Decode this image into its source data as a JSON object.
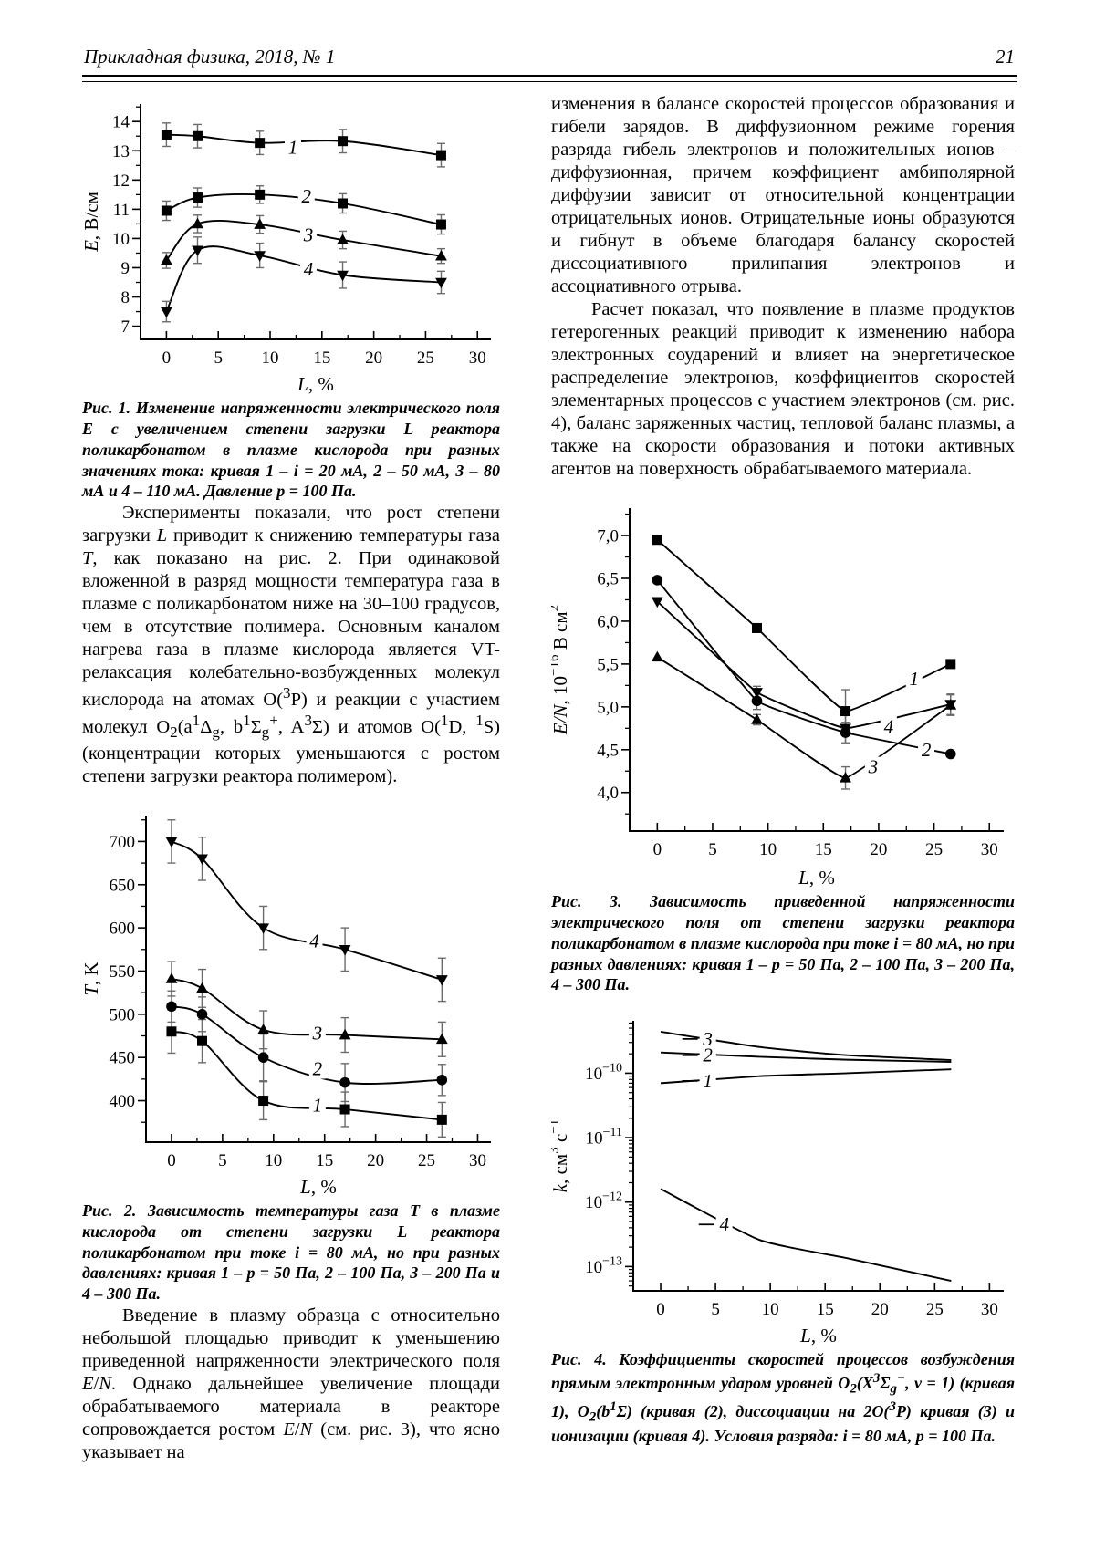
{
  "header": {
    "journal_title": "Прикладная физика, 2018, № 1",
    "page_number": "21"
  },
  "left_column": {
    "figure1_caption_html": "Рис. 1. Изменение напряженности электрического поля <i>E</i> с увеличением степени загрузки <i>L</i> реактора поликарбонатом в плазме кислорода при разных значениях тока: кривая 1 – <i>i</i> = 20 мА, 2 – 50 мА, 3 – 80 мА и 4 – 110 мА. Давление <i>p</i> = 100 Па.",
    "paragraph1_html": "Эксперименты показали, что рост степени загрузки <i>L</i> приводит к снижению температуры газа <i>T</i>, как показано на рис. 2. При одинаковой вложенной в разряд мощности температура газа в плазме с поликарбонатом ниже на 30–100 градусов, чем в отсутствие полимера. Основным каналом нагрева газа в плазме кислорода является VT-релаксация колебательно-возбужденных молекул кислорода на атомах O(<sup>3</sup>P) и реакции с участием молекул O<sub>2</sub>(a<sup>1</sup>Δ<sub>g</sub>, b<sup>1</sup>Σ<sub>g</sub><sup>+</sup>, A<sup>3</sup>Σ) и атомов O(<sup>1</sup>D, <sup>1</sup>S) (концентрации которых уменьшаются с ростом степени загрузки реактора полимером).",
    "figure2_caption_html": "Рис. 2. Зависимость температуры газа <i>T</i> в плазме кислорода от степени загрузки <i>L</i> реактора поликарбонатом при токе <i>i</i> = 80 мА, но при разных давлениях: кривая 1 – <i>p</i> = 50 Па, 2 – 100 Па, 3 – 200 Па и 4 – 300 Па.",
    "paragraph2_html": "Введение в плазму образца с относительно небольшой площадью приводит к уменьшению приведенной напряженности электрического поля <i>E</i>/<i>N</i>. Однако дальнейшее увеличение площади обрабатываемого материала в реакторе сопровождается ростом <i>E</i>/<i>N</i> (см. рис. 3), что ясно указывает на"
  },
  "right_column": {
    "paragraph1_html": "изменения в балансе скоростей процессов образования и гибели зарядов. В диффузионном режиме горения разряда гибель электронов и положительных ионов – диффузионная, причем коэффициент амбиполярной диффузии зависит от относительной концентрации отрицательных ионов. Отрицательные ионы образуются и гибнут в объеме благодаря балансу скоростей диссоциативного прилипания электронов и ассоциативного отрыва.",
    "paragraph2_html": "Расчет показал, что появление в плазме продуктов гетерогенных реакций приводит к изменению набора электронных соударений и влияет на энергетическое распределение электронов, коэффициентов скоростей элементарных процессов с участием электронов (см. рис. 4), баланс заряженных частиц, тепловой баланс плазмы, а также на скорости образования и потоки активных агентов на поверхность обрабатываемого материала.",
    "figure3_caption_html": "Рис. 3. Зависимость приведенной напряженности электрического поля от степени загрузки реактора поликарбонатом в плазме кислорода при токе <i>i</i> = 80 мА, но при разных давлениях: кривая 1 – <i>p</i> = 50 Па, 2 – 100 Па, 3 – 200 Па, 4 – 300 Па.",
    "figure4_caption_html": "Рис. 4. Коэффициенты скоростей процессов возбуждения прямым электронным ударом уровней O<sub>2</sub>(X<sup>3</sup>Σ<sub>g</sub><sup>−</sup>, <i>v</i> = 1) (кривая 1), O<sub>2</sub>(b<sup>1</sup>Σ) (кривая (2), диссоциации на 2O(<sup>3</sup>P) кривая (3) и ионизации (кривая 4). Условия разряда: <i>i</i> = 80 мА, <i>p</i> = 100 Па."
  },
  "chart_data": [
    {
      "id": "fig1",
      "type": "line",
      "title": "",
      "size": [
        458,
        332
      ],
      "margins": {
        "l": 64,
        "r": 10,
        "t": 10,
        "b": 64
      },
      "smooth": 1,
      "xlim": [
        -2.5,
        31.3
      ],
      "xticks": [
        0,
        5,
        10,
        15,
        20,
        25,
        30
      ],
      "xminor": 2.5,
      "ylim": [
        6.55,
        14.6
      ],
      "yticks": [
        7,
        8,
        9,
        10,
        11,
        12,
        13,
        14
      ],
      "yminor": 0.5,
      "ytick_format": "int",
      "xlabel": [
        {
          "text": "L",
          "italic": true
        },
        {
          "text": ", %"
        }
      ],
      "ylabel": [
        {
          "text": "E",
          "italic": true
        },
        {
          "text": ", В/см"
        }
      ],
      "x": [
        0,
        3,
        9,
        17,
        26.5
      ],
      "series": [
        {
          "name": "1",
          "marker": "square",
          "y": [
            13.55,
            13.5,
            13.27,
            13.33,
            12.85
          ],
          "err": [
            0.4,
            0.4,
            0.4,
            0.4,
            0.4
          ],
          "label_at": [
            12.2,
            13.12
          ]
        },
        {
          "name": "2",
          "marker": "square",
          "y": [
            10.95,
            11.4,
            11.5,
            11.2,
            10.48
          ],
          "err": [
            0.33,
            0.33,
            0.3,
            0.33,
            0.33
          ],
          "label_at": [
            13.5,
            11.45
          ]
        },
        {
          "name": "3",
          "marker": "triangle-up",
          "y": [
            9.25,
            10.5,
            10.48,
            9.95,
            9.4
          ],
          "err": [
            0.27,
            0.3,
            0.3,
            0.3,
            0.25
          ],
          "label_at": [
            13.7,
            10.12
          ]
        },
        {
          "name": "4",
          "marker": "triangle-down",
          "y": [
            7.5,
            9.6,
            9.42,
            8.75,
            8.5
          ],
          "err": [
            0.35,
            0.45,
            0.42,
            0.45,
            0.38
          ],
          "label_at": [
            13.7,
            8.95
          ]
        }
      ]
    },
    {
      "id": "fig2",
      "type": "line",
      "title": "",
      "size": [
        458,
        434
      ],
      "margins": {
        "l": 70,
        "r": 10,
        "t": 12,
        "b": 64
      },
      "smooth": 1,
      "xlim": [
        -2.5,
        31.3
      ],
      "xticks": [
        0,
        5,
        10,
        15,
        20,
        25,
        30
      ],
      "xminor": 2.5,
      "ylim": [
        352,
        730
      ],
      "yticks": [
        400,
        450,
        500,
        550,
        600,
        650,
        700
      ],
      "yminor": 25,
      "ytick_format": "int",
      "xlabel": [
        {
          "text": "L",
          "italic": true
        },
        {
          "text": ", %"
        }
      ],
      "ylabel": [
        {
          "text": "T",
          "italic": true
        },
        {
          "text": ", K"
        }
      ],
      "x": [
        0,
        3,
        9,
        17,
        26.5
      ],
      "series": [
        {
          "name": "4",
          "marker": "triangle-down",
          "y": [
            700,
            680,
            600,
            575,
            540
          ],
          "err": [
            25,
            25,
            25,
            25,
            25
          ],
          "label_at": [
            14,
            585
          ]
        },
        {
          "name": "3",
          "marker": "triangle-up",
          "y": [
            541,
            530,
            482,
            476,
            471
          ],
          "err": [
            20,
            22,
            22,
            20,
            20
          ],
          "label_at": [
            14.3,
            478
          ]
        },
        {
          "name": "2",
          "marker": "circle",
          "y": [
            509,
            500,
            450,
            421,
            424
          ],
          "err": [
            18,
            20,
            27,
            22,
            18
          ],
          "label_at": [
            14.3,
            437
          ]
        },
        {
          "name": "1",
          "marker": "square",
          "y": [
            480,
            469,
            400,
            390,
            378
          ],
          "err": [
            25,
            25,
            22,
            20,
            20
          ],
          "label_at": [
            14.3,
            395
          ]
        }
      ]
    },
    {
      "id": "fig3",
      "type": "line",
      "title": "",
      "size": [
        508,
        434
      ],
      "margins": {
        "l": 86,
        "r": 12,
        "t": 14,
        "b": 66
      },
      "smooth": 0.25,
      "xlim": [
        -2.5,
        31.3
      ],
      "xticks": [
        0,
        5,
        10,
        15,
        20,
        25,
        30
      ],
      "xminor": 2.5,
      "ylim": [
        3.55,
        7.32
      ],
      "yticks": [
        4,
        4.5,
        5,
        5.5,
        6,
        6.5,
        7
      ],
      "yminor": 0.25,
      "ytick_format": "comma1",
      "xlabel": [
        {
          "text": "L",
          "italic": true
        },
        {
          "text": ", %"
        }
      ],
      "ylabel": [
        {
          "text": "E/N",
          "italic": true
        },
        {
          "text": ", 10"
        },
        {
          "text": "−16",
          "script": "sup"
        },
        {
          "text": " В см"
        },
        {
          "text": "2",
          "script": "sup"
        }
      ],
      "x": [
        0,
        9,
        17,
        26.5
      ],
      "series": [
        {
          "name": "1",
          "marker": "square",
          "y": [
            6.95,
            5.92,
            4.95,
            5.5
          ],
          "err": [
            0,
            0,
            0.25,
            0
          ],
          "label_at": [
            23.2,
            5.33
          ]
        },
        {
          "name": "2",
          "marker": "circle",
          "y": [
            6.48,
            5.07,
            4.7,
            4.45
          ],
          "err": [
            0,
            0.1,
            0.12,
            0
          ],
          "label_at": [
            24.3,
            4.5
          ]
        },
        {
          "name": "3",
          "marker": "triangle-up",
          "y": [
            5.58,
            4.85,
            4.17,
            5.02
          ],
          "err": [
            0,
            0.06,
            0.13,
            0.12
          ],
          "label_at": [
            19.5,
            4.3
          ]
        },
        {
          "name": "4",
          "marker": "triangle-down",
          "y": [
            6.23,
            5.17,
            4.75,
            5.03
          ],
          "err": [
            0,
            0.07,
            0.18,
            0.12
          ],
          "label_at": [
            20.9,
            4.77
          ]
        }
      ]
    },
    {
      "id": "fig4",
      "type": "line",
      "title": "",
      "yscale": "log",
      "size": [
        508,
        370
      ],
      "margins": {
        "l": 90,
        "r": 12,
        "t": 10,
        "b": 64
      },
      "smooth": 0.55,
      "xlim": [
        -2.5,
        31.3
      ],
      "xticks": [
        0,
        5,
        10,
        15,
        20,
        25,
        30
      ],
      "xminor": 2.5,
      "ylim": [
        4.2e-14,
        6.5e-10
      ],
      "yticks": [
        1e-10,
        1e-11,
        1e-12,
        1e-13
      ],
      "ytick_format": "pow10",
      "xlabel": [
        {
          "text": "L",
          "italic": true
        },
        {
          "text": ", %"
        }
      ],
      "ylabel": [
        {
          "text": "k",
          "italic": true
        },
        {
          "text": ", см"
        },
        {
          "text": "3",
          "script": "sup"
        },
        {
          "text": " с"
        },
        {
          "text": "−1",
          "script": "sup"
        }
      ],
      "x": [
        0,
        9,
        17,
        26.5
      ],
      "series": [
        {
          "name": "3",
          "marker": "none",
          "y": [
            4.4e-10,
            2.55e-10,
            1.9e-10,
            1.6e-10
          ],
          "label_at": [
            4.3,
            3.4e-10
          ],
          "dash": true
        },
        {
          "name": "2",
          "marker": "none",
          "y": [
            2.1e-10,
            1.8e-10,
            1.62e-10,
            1.5e-10
          ],
          "label_at": [
            4.3,
            1.9e-10
          ],
          "dash": true
        },
        {
          "name": "1",
          "marker": "none",
          "y": [
            7e-11,
            9e-11,
            1e-10,
            1.15e-10
          ],
          "label_at": [
            4.3,
            7.6e-11
          ],
          "dash": true
        },
        {
          "name": "4",
          "marker": "none",
          "y": [
            1.6e-12,
            2.6e-13,
            1.35e-13,
            6e-14
          ],
          "label_at": [
            5.8,
            4.5e-13
          ],
          "dash": true
        }
      ]
    }
  ]
}
